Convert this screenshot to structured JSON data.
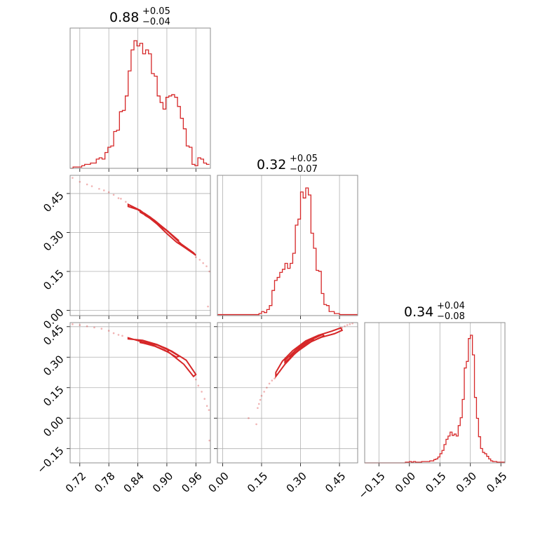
{
  "chart_data": {
    "type": "corner",
    "color": "#d62728",
    "parameters": [
      "p0",
      "p1",
      "p2"
    ],
    "titles": [
      {
        "value": "0.88",
        "plus": "+0.05",
        "minus": "−0.04"
      },
      {
        "value": "0.32",
        "plus": "+0.05",
        "minus": "−0.07"
      },
      {
        "value": "0.34",
        "plus": "+0.04",
        "minus": "−0.08"
      }
    ],
    "ranges": [
      [
        0.7,
        0.99
      ],
      [
        -0.02,
        0.52
      ],
      [
        -0.22,
        0.47
      ]
    ],
    "ticks": [
      {
        "values": [
          0.72,
          0.78,
          0.84,
          0.9,
          0.96
        ],
        "labels": [
          "0.72",
          "0.78",
          "0.84",
          "0.90",
          "0.96"
        ]
      },
      {
        "values": [
          0.0,
          0.15,
          0.3,
          0.45
        ],
        "labels": [
          "0.00",
          "0.15",
          "0.30",
          "0.45"
        ]
      },
      {
        "values": [
          -0.15,
          0.0,
          0.15,
          0.3,
          0.45
        ],
        "labels": [
          "−0.15",
          "0.00",
          "0.15",
          "0.30",
          "0.45"
        ]
      }
    ],
    "histograms": [
      {
        "bin_edges": [
          0.7,
          0.706,
          0.712,
          0.718,
          0.724,
          0.73,
          0.736,
          0.742,
          0.748,
          0.754,
          0.76,
          0.766,
          0.772,
          0.778,
          0.784,
          0.79,
          0.796,
          0.802,
          0.808,
          0.814,
          0.82,
          0.826,
          0.832,
          0.838,
          0.844,
          0.85,
          0.856,
          0.862,
          0.868,
          0.874,
          0.88,
          0.886,
          0.892,
          0.898,
          0.904,
          0.91,
          0.916,
          0.922,
          0.928,
          0.934,
          0.94,
          0.946,
          0.952,
          0.958,
          0.964,
          0.97,
          0.976,
          0.982,
          0.988
        ],
        "counts": [
          0,
          1,
          1,
          1,
          2,
          3,
          3,
          4,
          4,
          7,
          8,
          7,
          12,
          16,
          17,
          28,
          29,
          43,
          44,
          55,
          74,
          90,
          97,
          93,
          95,
          87,
          90,
          87,
          72,
          70,
          55,
          50,
          45,
          54,
          55,
          56,
          54,
          47,
          38,
          30,
          17,
          16,
          3,
          2,
          8,
          7,
          4,
          3
        ]
      },
      {
        "bin_edges": [
          -0.02,
          -0.01,
          0.0,
          0.01,
          0.02,
          0.03,
          0.04,
          0.05,
          0.06,
          0.07,
          0.08,
          0.09,
          0.1,
          0.11,
          0.12,
          0.13,
          0.14,
          0.15,
          0.16,
          0.17,
          0.18,
          0.19,
          0.2,
          0.21,
          0.22,
          0.23,
          0.24,
          0.25,
          0.26,
          0.27,
          0.28,
          0.29,
          0.3,
          0.31,
          0.32,
          0.33,
          0.34,
          0.35,
          0.36,
          0.37,
          0.38,
          0.39,
          0.4,
          0.41,
          0.42,
          0.43,
          0.44,
          0.45,
          0.46,
          0.47,
          0.48,
          0.49,
          0.5,
          0.51,
          0.52
        ],
        "counts": [
          1,
          1,
          1,
          1,
          1,
          1,
          1,
          1,
          1,
          1,
          1,
          1,
          1,
          1,
          1,
          1,
          2,
          4,
          3,
          6,
          10,
          25,
          35,
          38,
          43,
          46,
          52,
          47,
          52,
          62,
          90,
          96,
          123,
          117,
          127,
          120,
          82,
          67,
          45,
          44,
          22,
          11,
          10,
          4,
          4,
          2,
          2,
          1,
          1,
          1,
          1,
          1,
          1,
          1
        ]
      },
      {
        "bin_edges": [
          -0.22,
          -0.21,
          -0.2,
          -0.19,
          -0.18,
          -0.17,
          -0.16,
          -0.15,
          -0.14,
          -0.13,
          -0.12,
          -0.11,
          -0.1,
          -0.09,
          -0.08,
          -0.07,
          -0.06,
          -0.05,
          -0.04,
          -0.03,
          -0.02,
          -0.01,
          0.0,
          0.01,
          0.02,
          0.03,
          0.04,
          0.05,
          0.06,
          0.07,
          0.08,
          0.09,
          0.1,
          0.11,
          0.12,
          0.13,
          0.14,
          0.15,
          0.16,
          0.17,
          0.18,
          0.19,
          0.2,
          0.21,
          0.22,
          0.23,
          0.24,
          0.25,
          0.26,
          0.27,
          0.28,
          0.29,
          0.3,
          0.31,
          0.32,
          0.33,
          0.34,
          0.35,
          0.36,
          0.37,
          0.38,
          0.39,
          0.4,
          0.41,
          0.42,
          0.43,
          0.44,
          0.45,
          0.46,
          0.47
        ],
        "counts": [
          0,
          0,
          0,
          0,
          0,
          0,
          0,
          0,
          0,
          0,
          0,
          0,
          0,
          0,
          0,
          0,
          0,
          0,
          0,
          0,
          1,
          1,
          2,
          1,
          2,
          1,
          1,
          1,
          2,
          2,
          2,
          2,
          3,
          3,
          5,
          6,
          9,
          14,
          19,
          28,
          36,
          41,
          47,
          42,
          44,
          41,
          57,
          69,
          97,
          145,
          155,
          190,
          195,
          165,
          100,
          68,
          40,
          22,
          16,
          14,
          10,
          6,
          3,
          2,
          2,
          1,
          1,
          1,
          1
        ]
      }
    ],
    "pairs": [
      {
        "x_param": 0,
        "y_param": 1,
        "contour_levels": [
          [
            [
              0.82,
              0.4
            ],
            [
              0.84,
              0.388
            ],
            [
              0.86,
              0.362
            ],
            [
              0.88,
              0.332
            ],
            [
              0.9,
              0.296
            ],
            [
              0.92,
              0.263
            ],
            [
              0.94,
              0.238
            ],
            [
              0.96,
              0.212
            ],
            [
              0.955,
              0.222
            ],
            [
              0.93,
              0.255
            ],
            [
              0.9,
              0.307
            ],
            [
              0.87,
              0.348
            ],
            [
              0.845,
              0.385
            ],
            [
              0.82,
              0.408
            ]
          ],
          [
            [
              0.845,
              0.378
            ],
            [
              0.87,
              0.352
            ],
            [
              0.9,
              0.308
            ],
            [
              0.925,
              0.268
            ],
            [
              0.92,
              0.275
            ],
            [
              0.895,
              0.315
            ],
            [
              0.865,
              0.36
            ],
            [
              0.845,
              0.383
            ]
          ],
          [
            [
              0.855,
              0.366
            ],
            [
              0.88,
              0.338
            ],
            [
              0.905,
              0.3
            ],
            [
              0.9,
              0.307
            ],
            [
              0.875,
              0.346
            ],
            [
              0.855,
              0.372
            ]
          ]
        ],
        "scatter": [
          [
            0.705,
            0.51
          ],
          [
            0.72,
            0.495
          ],
          [
            0.735,
            0.485
          ],
          [
            0.745,
            0.478
          ],
          [
            0.76,
            0.468
          ],
          [
            0.77,
            0.462
          ],
          [
            0.78,
            0.455
          ],
          [
            0.79,
            0.445
          ],
          [
            0.8,
            0.432
          ],
          [
            0.805,
            0.43
          ],
          [
            0.815,
            0.418
          ],
          [
            0.96,
            0.205
          ],
          [
            0.968,
            0.195
          ],
          [
            0.975,
            0.182
          ],
          [
            0.982,
            0.17
          ],
          [
            0.988,
            0.15
          ],
          [
            0.985,
            0.015
          ]
        ]
      },
      {
        "x_param": 0,
        "y_param": 2,
        "contour_levels": [
          [
            [
              0.82,
              0.39
            ],
            [
              0.85,
              0.383
            ],
            [
              0.88,
              0.362
            ],
            [
              0.91,
              0.33
            ],
            [
              0.94,
              0.285
            ],
            [
              0.96,
              0.215
            ],
            [
              0.955,
              0.205
            ],
            [
              0.935,
              0.265
            ],
            [
              0.905,
              0.322
            ],
            [
              0.875,
              0.355
            ],
            [
              0.845,
              0.378
            ],
            [
              0.82,
              0.395
            ]
          ],
          [
            [
              0.845,
              0.378
            ],
            [
              0.875,
              0.365
            ],
            [
              0.9,
              0.342
            ],
            [
              0.925,
              0.305
            ],
            [
              0.92,
              0.3
            ],
            [
              0.895,
              0.335
            ],
            [
              0.87,
              0.36
            ],
            [
              0.845,
              0.372
            ]
          ],
          [
            [
              0.855,
              0.373
            ],
            [
              0.88,
              0.36
            ],
            [
              0.905,
              0.333
            ],
            [
              0.9,
              0.328
            ],
            [
              0.875,
              0.354
            ],
            [
              0.855,
              0.367
            ]
          ]
        ],
        "scatter": [
          [
            0.705,
            0.462
          ],
          [
            0.72,
            0.458
          ],
          [
            0.735,
            0.452
          ],
          [
            0.75,
            0.446
          ],
          [
            0.765,
            0.44
          ],
          [
            0.78,
            0.43
          ],
          [
            0.79,
            0.418
          ],
          [
            0.8,
            0.41
          ],
          [
            0.808,
            0.405
          ],
          [
            0.96,
            0.19
          ],
          [
            0.965,
            0.16
          ],
          [
            0.972,
            0.13
          ],
          [
            0.978,
            0.095
          ],
          [
            0.983,
            0.06
          ],
          [
            0.987,
            0.04
          ],
          [
            0.988,
            -0.11
          ]
        ]
      },
      {
        "x_param": 1,
        "y_param": 2,
        "contour_levels": [
          [
            [
              0.205,
              0.205
            ],
            [
              0.24,
              0.265
            ],
            [
              0.28,
              0.32
            ],
            [
              0.33,
              0.37
            ],
            [
              0.38,
              0.398
            ],
            [
              0.43,
              0.415
            ],
            [
              0.46,
              0.432
            ],
            [
              0.455,
              0.444
            ],
            [
              0.42,
              0.428
            ],
            [
              0.37,
              0.408
            ],
            [
              0.32,
              0.38
            ],
            [
              0.27,
              0.332
            ],
            [
              0.23,
              0.28
            ],
            [
              0.205,
              0.225
            ]
          ],
          [
            [
              0.24,
              0.275
            ],
            [
              0.29,
              0.33
            ],
            [
              0.34,
              0.375
            ],
            [
              0.39,
              0.405
            ],
            [
              0.385,
              0.412
            ],
            [
              0.335,
              0.382
            ],
            [
              0.285,
              0.338
            ],
            [
              0.24,
              0.285
            ]
          ],
          [
            [
              0.26,
              0.3
            ],
            [
              0.3,
              0.345
            ],
            [
              0.35,
              0.385
            ],
            [
              0.345,
              0.392
            ],
            [
              0.295,
              0.352
            ],
            [
              0.26,
              0.308
            ]
          ]
        ],
        "scatter": [
          [
            0.1,
            0.0
          ],
          [
            0.13,
            -0.03
          ],
          [
            0.135,
            0.05
          ],
          [
            0.14,
            0.07
          ],
          [
            0.145,
            0.09
          ],
          [
            0.15,
            0.11
          ],
          [
            0.16,
            0.13
          ],
          [
            0.17,
            0.15
          ],
          [
            0.18,
            0.17
          ],
          [
            0.19,
            0.185
          ],
          [
            0.2,
            0.195
          ],
          [
            0.21,
            0.215
          ],
          [
            0.22,
            0.23
          ],
          [
            0.46,
            0.445
          ],
          [
            0.47,
            0.452
          ],
          [
            0.48,
            0.458
          ],
          [
            0.49,
            0.462
          ],
          [
            0.5,
            0.466
          ]
        ]
      }
    ]
  }
}
